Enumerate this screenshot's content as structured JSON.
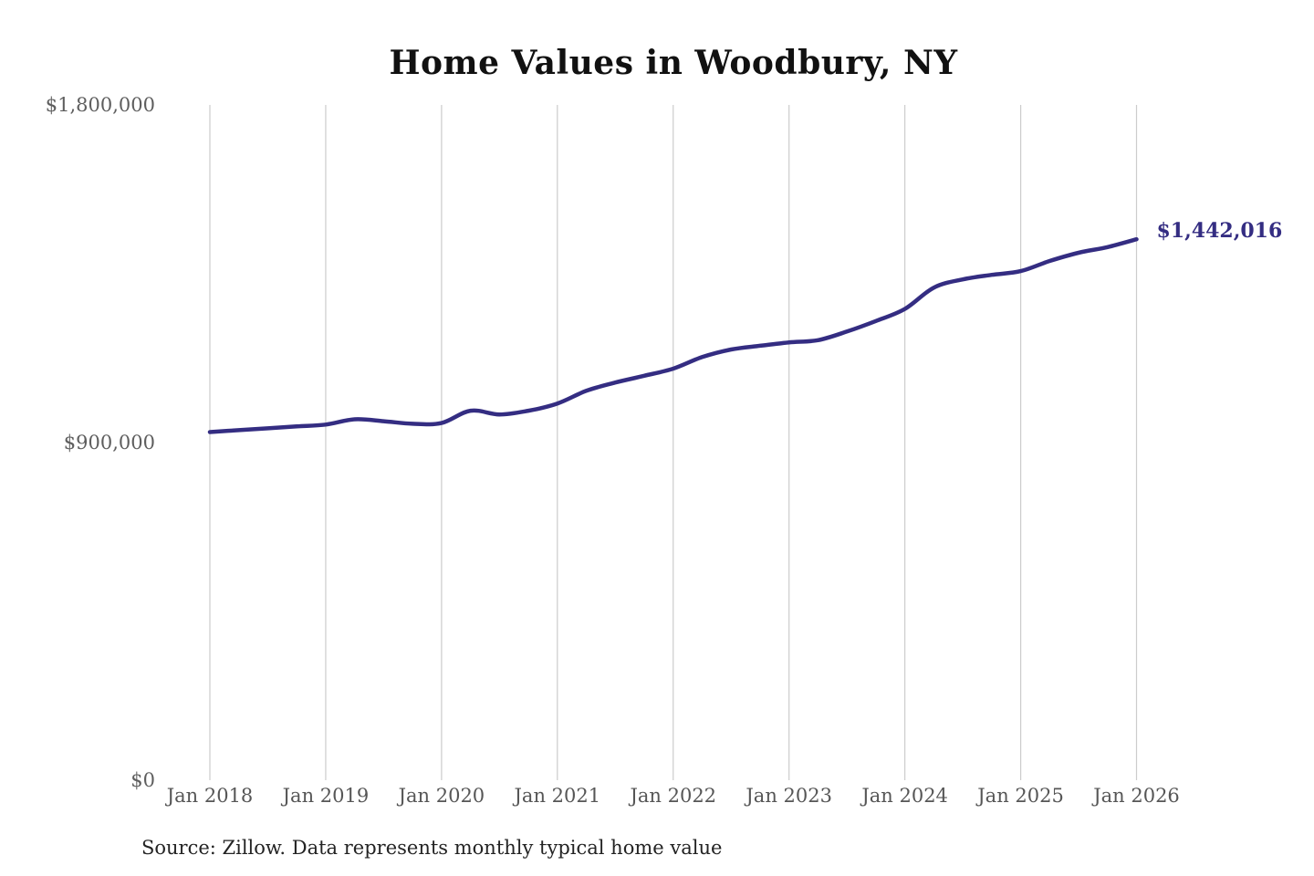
{
  "chart": {
    "title": "Home Values in Woodbury, NY",
    "end_value_label": "$1,442,016",
    "source_note": "Source: Zillow. Data represents monthly typical home value",
    "colors": {
      "line": "#342d82",
      "end_label": "#342d82",
      "gridline": "#cccccc",
      "axis_text": "#5e5e5e",
      "title_text": "#111111",
      "source_text": "#232323",
      "background": "#ffffff"
    }
  },
  "chart_data": {
    "type": "line",
    "title": "Home Values in Woodbury, NY",
    "series_name": "Monthly typical home value",
    "xlabel": "",
    "ylabel": "",
    "ylim": [
      0,
      1800000
    ],
    "grid": "vertical-only",
    "legend": "none",
    "y_ticks": [
      {
        "label": "$0",
        "value": 0
      },
      {
        "label": "$900,000",
        "value": 900000
      },
      {
        "label": "$1,800,000",
        "value": 1800000
      }
    ],
    "x_ticks": [
      {
        "label": "Jan 2018",
        "date": "2018-01"
      },
      {
        "label": "Jan 2019",
        "date": "2019-01"
      },
      {
        "label": "Jan 2020",
        "date": "2020-01"
      },
      {
        "label": "Jan 2021",
        "date": "2021-01"
      },
      {
        "label": "Jan 2022",
        "date": "2022-01"
      },
      {
        "label": "Jan 2023",
        "date": "2023-01"
      },
      {
        "label": "Jan 2024",
        "date": "2024-01"
      },
      {
        "label": "Jan 2025",
        "date": "2025-01"
      },
      {
        "label": "Jan 2026",
        "date": "2026-01"
      }
    ],
    "points": [
      {
        "date": "2018-01",
        "value": 928000
      },
      {
        "date": "2018-04",
        "value": 933000
      },
      {
        "date": "2018-07",
        "value": 938000
      },
      {
        "date": "2018-10",
        "value": 943000
      },
      {
        "date": "2019-01",
        "value": 948000
      },
      {
        "date": "2019-04",
        "value": 962000
      },
      {
        "date": "2019-07",
        "value": 957000
      },
      {
        "date": "2019-10",
        "value": 950000
      },
      {
        "date": "2020-01",
        "value": 952000
      },
      {
        "date": "2020-04",
        "value": 985000
      },
      {
        "date": "2020-07",
        "value": 975000
      },
      {
        "date": "2020-10",
        "value": 985000
      },
      {
        "date": "2021-01",
        "value": 1004000
      },
      {
        "date": "2021-04",
        "value": 1038000
      },
      {
        "date": "2021-07",
        "value": 1060000
      },
      {
        "date": "2021-10",
        "value": 1078000
      },
      {
        "date": "2022-01",
        "value": 1097000
      },
      {
        "date": "2022-04",
        "value": 1128000
      },
      {
        "date": "2022-07",
        "value": 1148000
      },
      {
        "date": "2022-10",
        "value": 1158000
      },
      {
        "date": "2023-01",
        "value": 1167000
      },
      {
        "date": "2023-04",
        "value": 1173000
      },
      {
        "date": "2023-07",
        "value": 1196000
      },
      {
        "date": "2023-10",
        "value": 1224000
      },
      {
        "date": "2024-01",
        "value": 1256000
      },
      {
        "date": "2024-04",
        "value": 1313000
      },
      {
        "date": "2024-07",
        "value": 1335000
      },
      {
        "date": "2024-10",
        "value": 1347000
      },
      {
        "date": "2025-01",
        "value": 1357000
      },
      {
        "date": "2025-04",
        "value": 1384000
      },
      {
        "date": "2025-07",
        "value": 1406000
      },
      {
        "date": "2025-10",
        "value": 1421000
      },
      {
        "date": "2026-01",
        "value": 1442016
      }
    ]
  }
}
